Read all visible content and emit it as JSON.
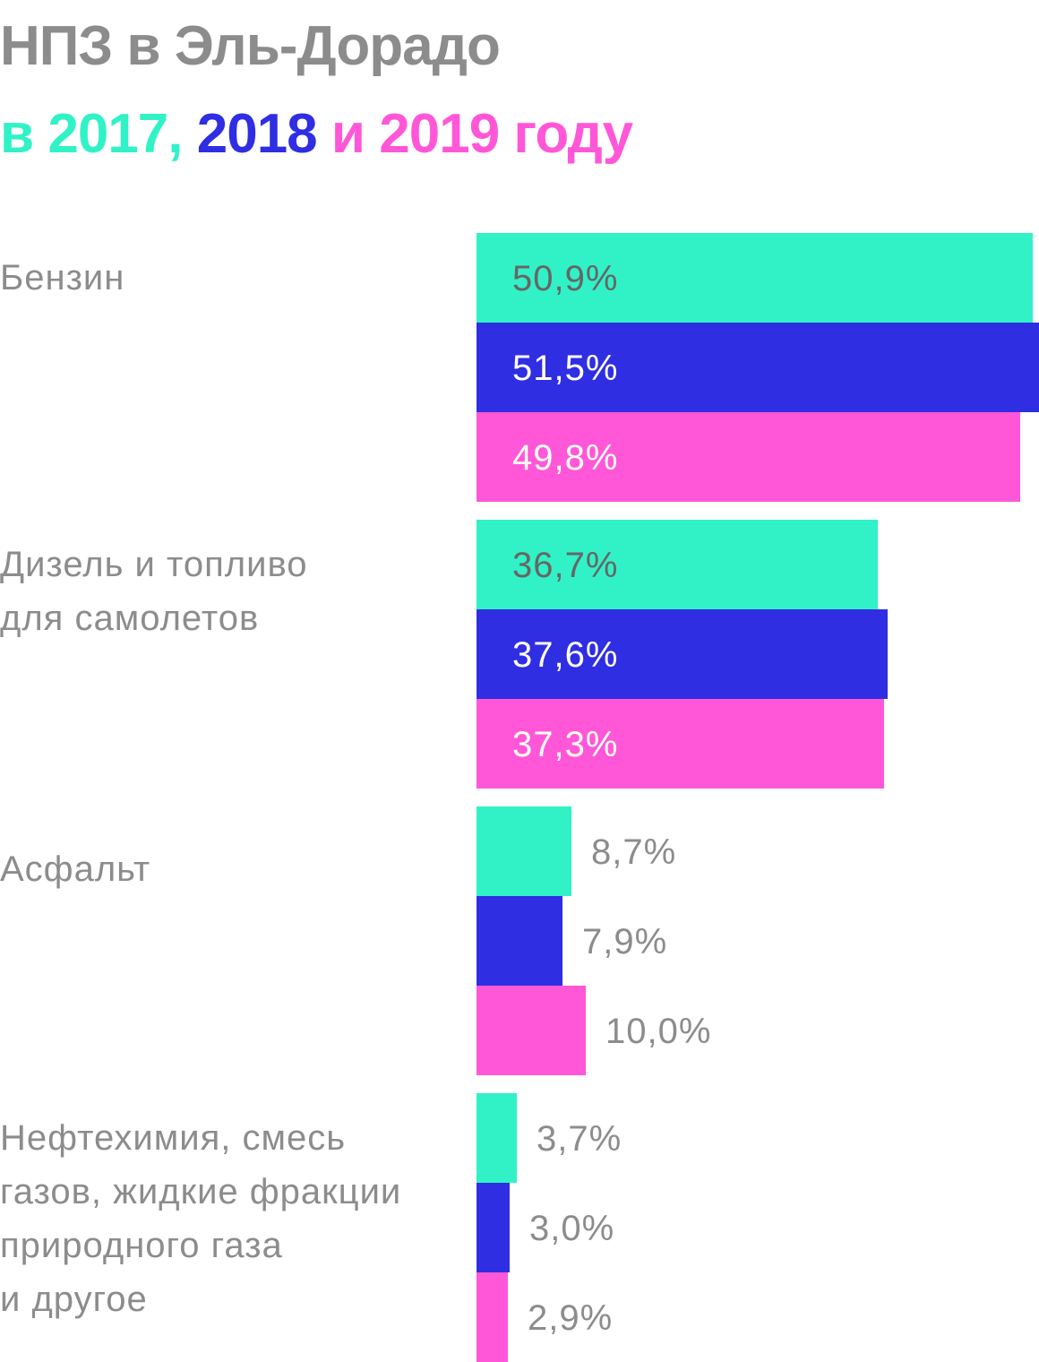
{
  "title": "НПЗ в Эль-Дорадо",
  "subtitle": {
    "prefix": "в ",
    "year1": "2017,",
    "year2": "2018",
    "joiner": " и ",
    "year3": "2019 году"
  },
  "colors": {
    "title": "#8c8c8c",
    "y2017": "#31f2c6",
    "y2018": "#2f2ee2",
    "y2019": "#ff57d7",
    "label_dark": "#666666",
    "label_light": "#ffffff",
    "label_outside": "#8c8c8c"
  },
  "chart_data": {
    "type": "bar",
    "orientation": "horizontal",
    "title": "НПЗ в Эль-Дорадо",
    "subtitle": "в 2017, 2018 и 2019 году",
    "categories": [
      [
        "Бензин"
      ],
      [
        "Дизель и топливо",
        "для самолетов"
      ],
      [
        "Асфальт"
      ],
      [
        "Нефтехимия, смесь",
        "газов, жидкие фракции",
        "природного газа",
        "и другое"
      ]
    ],
    "series": [
      {
        "name": "2017",
        "values": [
          50.9,
          36.7,
          8.7,
          3.7
        ],
        "labels": [
          "50,9%",
          "36,7%",
          "8,7%",
          "3,7%"
        ]
      },
      {
        "name": "2018",
        "values": [
          51.5,
          37.6,
          7.9,
          3.0
        ],
        "labels": [
          "51,5%",
          "37,6%",
          "7,9%",
          "3,0%"
        ]
      },
      {
        "name": "2019",
        "values": [
          49.8,
          37.3,
          10.0,
          2.9
        ],
        "labels": [
          "49,8%",
          "37,3%",
          "10,0%",
          "2,9%"
        ]
      }
    ],
    "xlim": [
      0,
      51.5
    ],
    "grid": false,
    "legend": "none"
  }
}
